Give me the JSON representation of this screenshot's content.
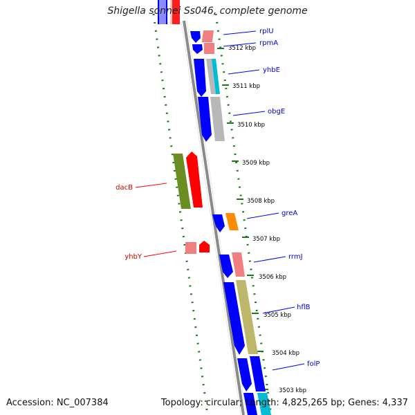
{
  "title": "Shigella sonnei Ss046, complete genome",
  "accession": "Accession: NC_007384",
  "summary": "Topology: circular; Length: 4,825,265 bp; Genes: 4,337",
  "tick_labels": [
    "3512 kbp",
    "3511 kbp",
    "3510 kbp",
    "3509 kbp",
    "3508 kbp",
    "3507 kbp",
    "3506 kbp",
    "3505 kbp",
    "3504 kbp",
    "3503 kbp"
  ],
  "genes_right": [
    {
      "name": "rplU",
      "color": "#0000cc"
    },
    {
      "name": "rpmA",
      "color": "#0000cc"
    },
    {
      "name": "yhbE",
      "color": "#0000cc"
    },
    {
      "name": "obgE",
      "color": "#0000cc"
    },
    {
      "name": "greA",
      "color": "#0000cc"
    },
    {
      "name": "rrmJ",
      "color": "#0000cc"
    },
    {
      "name": "hflB",
      "color": "#0000cc"
    },
    {
      "name": "folP",
      "color": "#0000cc"
    }
  ],
  "genes_left": [
    {
      "name": "dacB",
      "color": "#cc0000"
    },
    {
      "name": "yhbY",
      "color": "#cc0000"
    }
  ],
  "colors": {
    "backbone": "#8a8a8a",
    "dots": "#1a7a1a",
    "cds_blue": "#0000ff",
    "rna_pink": "#f08080",
    "cyan": "#00bcd4",
    "gray_feature": "#b8b8b8",
    "olive": "#6b8e23",
    "red": "#ff0000",
    "orange": "#ff8c00",
    "khaki": "#bdb76b"
  }
}
